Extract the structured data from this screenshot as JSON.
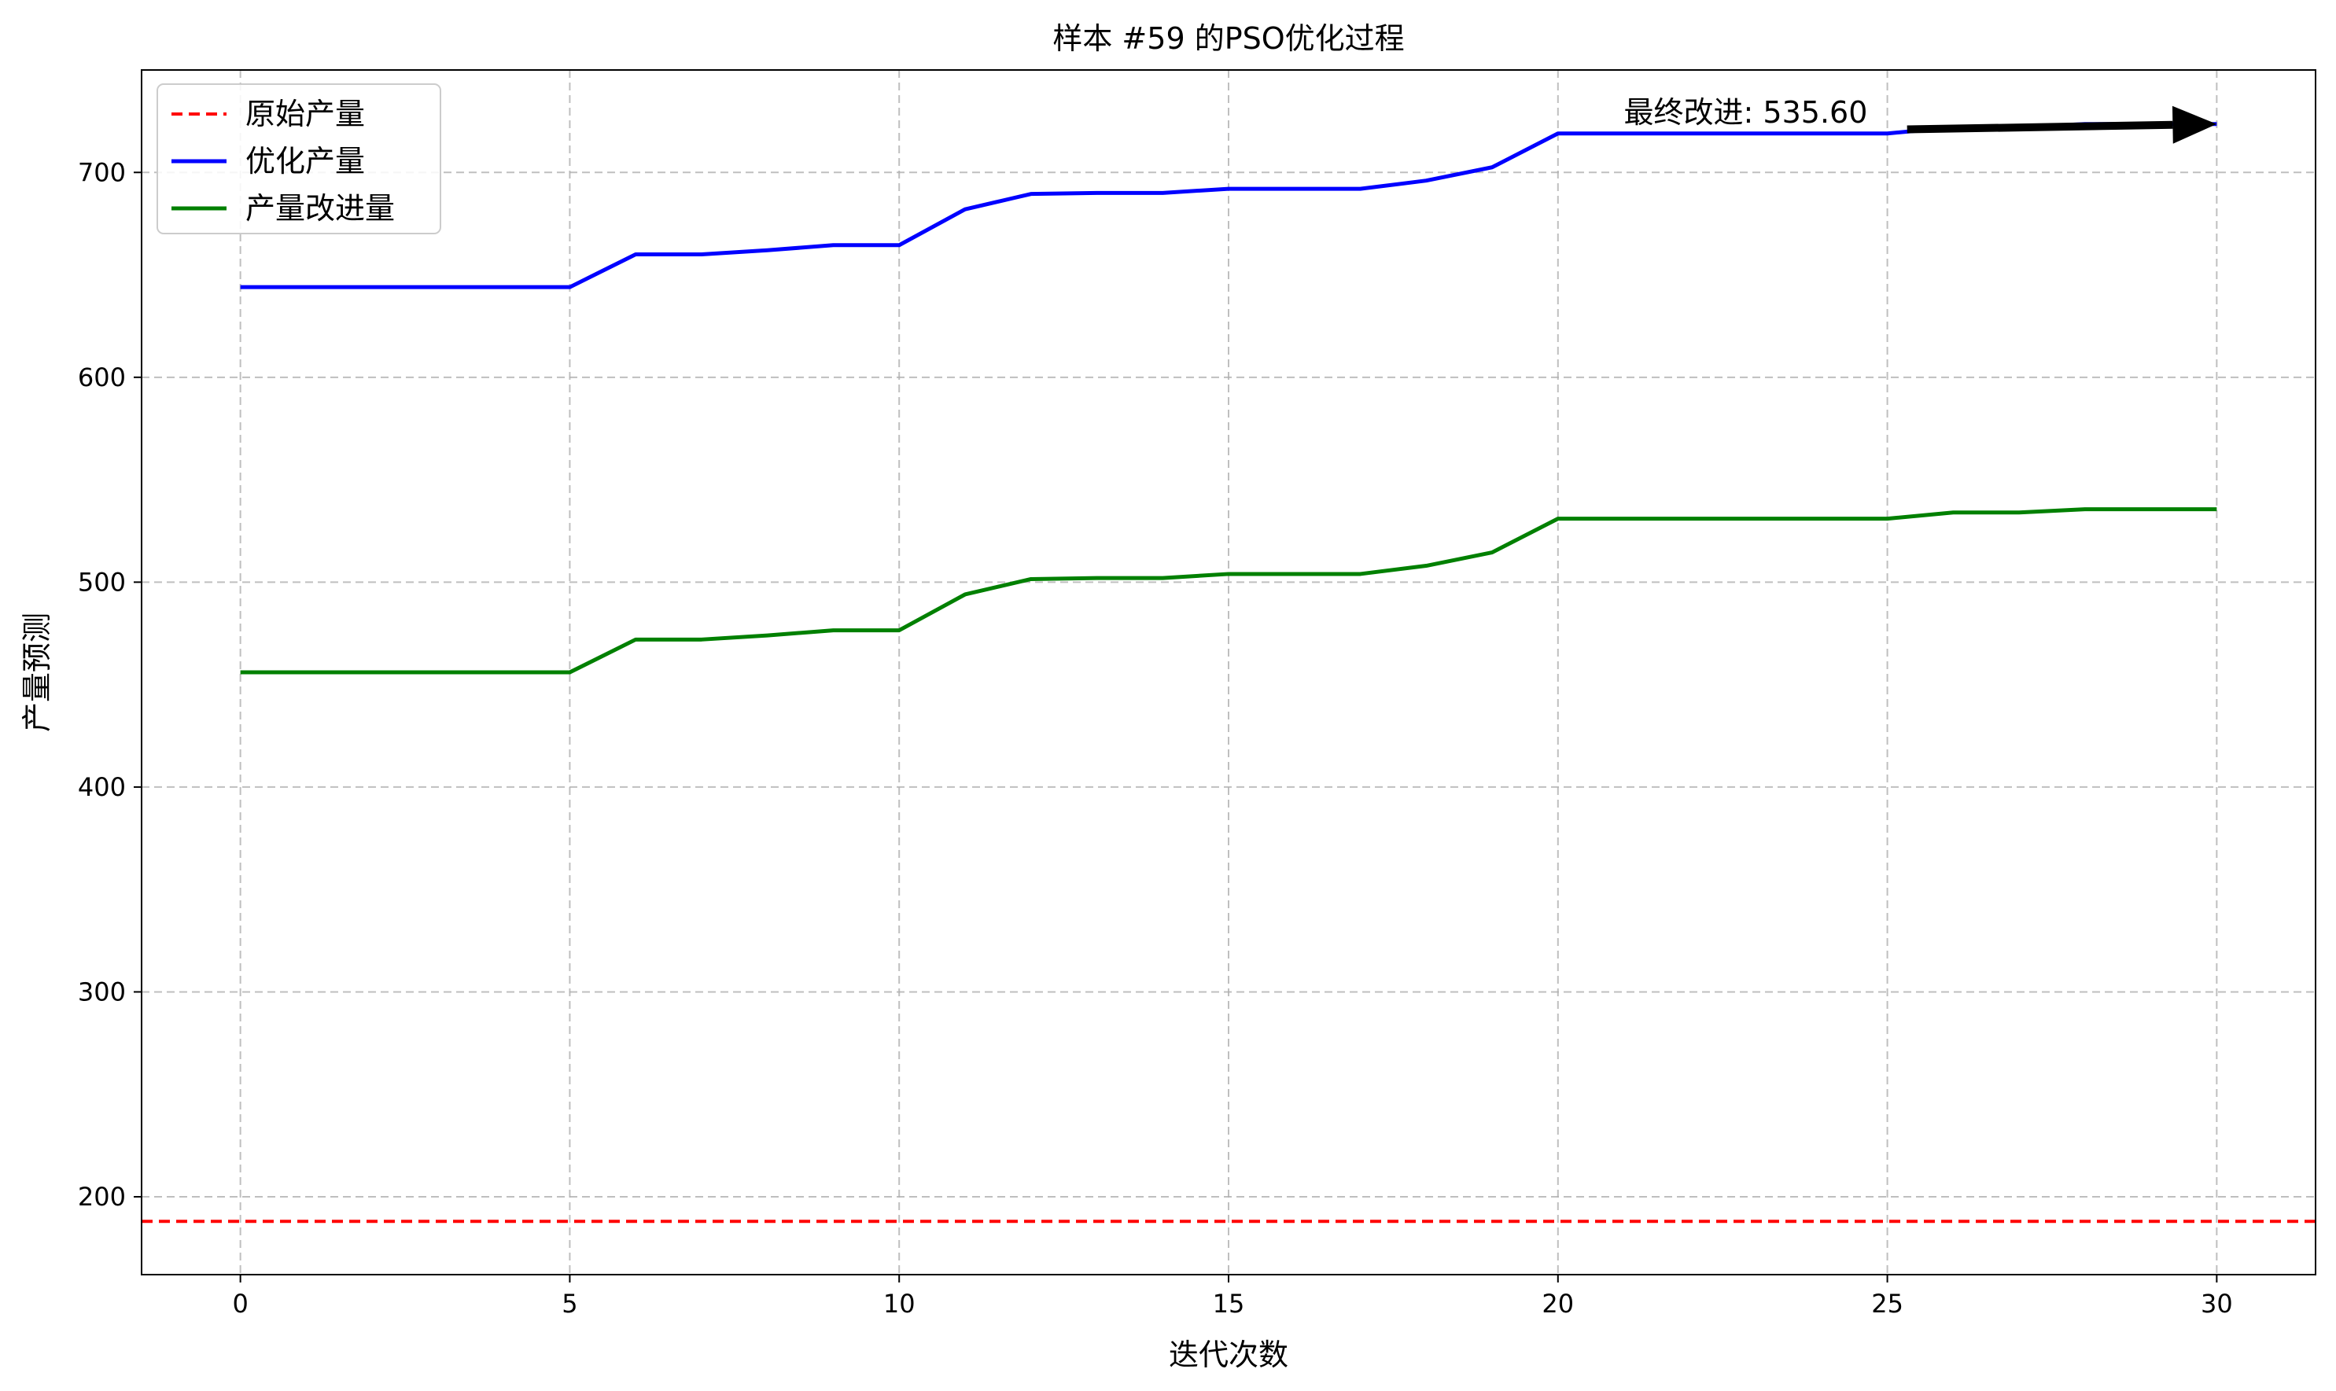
{
  "chart_data": {
    "type": "line",
    "title": "样本 #59 的PSO优化过程",
    "xlabel": "迭代次数",
    "ylabel": "产量预测",
    "xlim": [
      -1.5,
      31.5
    ],
    "ylim": [
      162,
      750
    ],
    "xticks": [
      0,
      5,
      10,
      15,
      20,
      25,
      30
    ],
    "yticks": [
      200,
      300,
      400,
      500,
      600,
      700
    ],
    "grid": true,
    "legend_position": "upper-left",
    "x": [
      0,
      1,
      2,
      3,
      4,
      5,
      6,
      7,
      8,
      9,
      10,
      11,
      12,
      13,
      14,
      15,
      16,
      17,
      18,
      19,
      20,
      21,
      22,
      23,
      24,
      25,
      26,
      27,
      28,
      29,
      30
    ],
    "series": [
      {
        "name": "原始产量",
        "color": "#ff0000",
        "style": "dashed",
        "type": "hline",
        "value": 188
      },
      {
        "name": "优化产量",
        "color": "#0000ff",
        "style": "solid",
        "values": [
          644,
          644,
          644,
          644,
          644,
          644,
          660,
          660,
          662,
          664.5,
          664.5,
          682,
          689.5,
          690,
          690,
          692,
          692,
          692,
          696,
          702.5,
          719,
          719,
          719,
          719,
          719,
          719,
          722,
          722,
          723.6,
          723.6,
          723.6
        ]
      },
      {
        "name": "产量改进量",
        "color": "#008000",
        "style": "solid",
        "values": [
          456,
          456,
          456,
          456,
          456,
          456,
          472,
          472,
          474,
          476.5,
          476.5,
          494,
          501.5,
          502,
          502,
          504,
          504,
          504,
          508,
          514.5,
          531,
          531,
          531,
          531,
          531,
          531,
          534,
          534,
          535.6,
          535.6,
          535.6
        ]
      }
    ],
    "annotation": {
      "text": "最终改进: 535.60",
      "text_x": 21,
      "text_y": 723.6,
      "arrow_from": [
        25.3,
        721
      ],
      "arrow_to": [
        30,
        723.6
      ],
      "color": "#000000"
    }
  }
}
